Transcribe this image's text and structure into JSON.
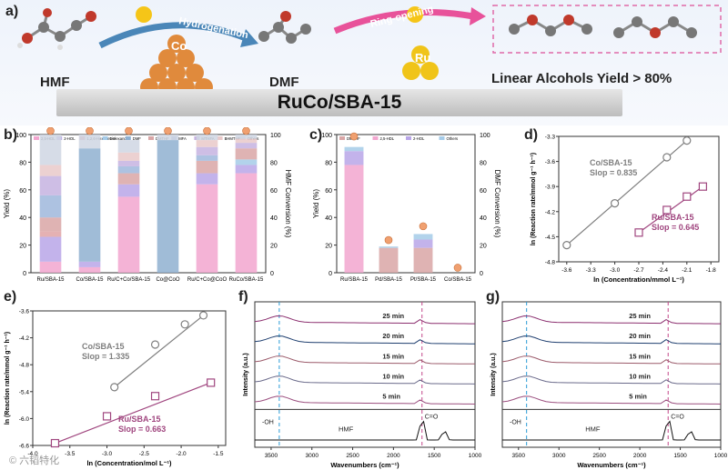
{
  "figure": {
    "panel_labels": [
      "a)",
      "b)",
      "c)",
      "d)",
      "e)",
      "f)",
      "g)"
    ],
    "watermark": "© 六韬特化",
    "scheme": {
      "molecules": [
        "HMF",
        "DMF"
      ],
      "arrow_1": "Hydrogenation",
      "arrow_2": "Ring-opening",
      "metal_1": "Co",
      "metal_2": "Ru",
      "product": "Linear Alcohols Yield > 80%",
      "catalyst": "RuCo/SBA-15"
    }
  },
  "chart_data": [
    {
      "id": "b",
      "type": "bar",
      "stacked": true,
      "ylabel": "Yield (%)",
      "y2label": "HMF Conversion (%)",
      "ylim": [
        0,
        100
      ],
      "yticks": [
        0,
        20,
        40,
        60,
        80,
        100
      ],
      "legend": [
        "2,5-HDL",
        "2-HOL",
        "1,2,6-Hexanetriol",
        "1-Hexanol",
        "DMF",
        "DMTHF",
        "MFA",
        "MTHFA",
        "BHMTHF",
        "Others"
      ],
      "colors": [
        "#f2a6cf",
        "#b9a6e8",
        "#e0a3a6",
        "#a5cbe8",
        "#8fb0d0",
        "#d9a6a6",
        "#9fb7dc",
        "#c6b3e0",
        "#e9c9c9",
        "#cfd6e3"
      ],
      "categories": [
        "Ru/SBA-15",
        "Co/SBA-15",
        "Ru/C+Co/SBA-15",
        "Co@CoO",
        "Ru/C+Co@CoO",
        "RuCo/SBA-15"
      ],
      "series": [
        {
          "name": "2,5-HDL",
          "values": [
            8,
            4,
            55,
            0,
            64,
            72
          ]
        },
        {
          "name": "2-HOL",
          "values": [
            18,
            4,
            9,
            0,
            8,
            6
          ]
        },
        {
          "name": "1,2,6-Hexanetriol",
          "values": [
            4,
            0,
            0,
            0,
            0,
            0
          ]
        },
        {
          "name": "1-Hexanol",
          "values": [
            0,
            0,
            0,
            0,
            0,
            4
          ]
        },
        {
          "name": "DMF",
          "values": [
            0,
            82,
            0,
            96,
            0,
            0
          ]
        },
        {
          "name": "DMTHF",
          "values": [
            10,
            0,
            8,
            0,
            9,
            8
          ]
        },
        {
          "name": "MFA",
          "values": [
            16,
            0,
            5,
            0,
            4,
            0
          ]
        },
        {
          "name": "MTHFA",
          "values": [
            14,
            0,
            4,
            0,
            6,
            4
          ]
        },
        {
          "name": "BHMTHF",
          "values": [
            8,
            0,
            6,
            0,
            5,
            3
          ]
        },
        {
          "name": "Others",
          "values": [
            22,
            10,
            9,
            4,
            4,
            3
          ]
        }
      ],
      "conversion": [
        100,
        100,
        100,
        100,
        100,
        100
      ]
    },
    {
      "id": "c",
      "type": "bar",
      "stacked": true,
      "ylabel": "Yield (%)",
      "y2label": "DMF Conversion (%)",
      "ylim": [
        0,
        100
      ],
      "yticks": [
        0,
        20,
        40,
        60,
        80,
        100
      ],
      "legend": [
        "DMTHF",
        "2,5-HDL",
        "2-HOL",
        "Others"
      ],
      "colors": [
        "#d9a6a6",
        "#f2a6cf",
        "#b9a6e8",
        "#a5cbe8"
      ],
      "categories": [
        "Ru/SBA-15",
        "Pd/SBA-15",
        "Pt/SBA-15",
        "Co/SBA-15"
      ],
      "series": [
        {
          "name": "DMTHF",
          "values": [
            0,
            18,
            18,
            0
          ]
        },
        {
          "name": "2,5-HDL",
          "values": [
            78,
            0,
            0,
            0
          ]
        },
        {
          "name": "2-HOL",
          "values": [
            10,
            0,
            6,
            0
          ]
        },
        {
          "name": "Others",
          "values": [
            3,
            1,
            4,
            0
          ]
        }
      ],
      "conversion": [
        96,
        21,
        31,
        1
      ]
    },
    {
      "id": "d",
      "type": "scatter",
      "xlabel": "ln (Concentration/mmol L⁻¹)",
      "ylabel": "ln (Reaction rate/mmol g⁻¹ h⁻¹)",
      "xlim": [
        -3.7,
        -1.7
      ],
      "ylim": [
        -4.8,
        -3.3
      ],
      "xticks": [
        -3.6,
        -3.3,
        -3.0,
        -2.7,
        -2.4,
        -2.1,
        -1.8
      ],
      "yticks": [
        -4.8,
        -4.5,
        -4.2,
        -3.9,
        -3.6,
        -3.3
      ],
      "series": [
        {
          "name": "Co/SBA-15",
          "label": "Co/SBA-15",
          "slope": "Slop = 0.835",
          "color": "#7f7f7f",
          "marker": "circle",
          "x": [
            -3.6,
            -3.0,
            -2.35,
            -2.1
          ],
          "y": [
            -4.6,
            -4.1,
            -3.55,
            -3.35
          ]
        },
        {
          "name": "Ru/SBA-15",
          "label": "Ru/SBA-15",
          "slope": "Slop = 0.645",
          "color": "#a0467f",
          "marker": "square",
          "x": [
            -2.7,
            -2.35,
            -2.1,
            -1.9
          ],
          "y": [
            -4.45,
            -4.18,
            -4.02,
            -3.9
          ]
        }
      ]
    },
    {
      "id": "e",
      "type": "scatter",
      "xlabel": "ln (Concentration/mol L⁻¹)",
      "ylabel": "ln (Reaction rate/mmol g⁻¹ h⁻¹)",
      "xlim": [
        -4.0,
        -1.4
      ],
      "ylim": [
        -6.6,
        -3.6
      ],
      "xticks": [
        -4.0,
        -3.5,
        -3.0,
        -2.5,
        -2.0,
        -1.5
      ],
      "xtick_labels": [
        "-4.0",
        "-3.5",
        "-3.0",
        "-2.5",
        "-2.0",
        "-1.5"
      ],
      "yticks": [
        -6.6,
        -6.0,
        -5.4,
        -4.8,
        -4.2,
        -3.6
      ],
      "series": [
        {
          "name": "Co/SBA-15",
          "label": "Co/SBA-15",
          "slope": "Slop = 1.335",
          "color": "#7f7f7f",
          "marker": "circle",
          "x": [
            -2.9,
            -2.35,
            -1.95,
            -1.7
          ],
          "y": [
            -5.3,
            -4.35,
            -3.9,
            -3.7
          ]
        },
        {
          "name": "Ru/SBA-15",
          "label": "Ru/SBA-15",
          "slope": "Slop = 0.663",
          "color": "#a0467f",
          "marker": "square",
          "x": [
            -3.7,
            -3.0,
            -2.35,
            -1.6
          ],
          "y": [
            -6.55,
            -5.95,
            -5.5,
            -5.2
          ]
        }
      ]
    },
    {
      "id": "f",
      "type": "line",
      "xlabel": "Wavenumbers (cm⁻¹)",
      "ylabel": "Intensity (a.u.)",
      "xlim": [
        3700,
        1000
      ],
      "xticks": [
        3500,
        3000,
        2500,
        2000,
        1500,
        1000
      ],
      "trace_labels": [
        "25 min",
        "20 min",
        "15 min",
        "10 min",
        "5 min"
      ],
      "trace_colors": [
        "#8b2f6f",
        "#1f3f6f",
        "#9b5a6a",
        "#6a6a8a",
        "#9b4f7f"
      ],
      "reference_label": "HMF",
      "peak_labels": [
        "-OH",
        "C=O"
      ],
      "marker_lines": [
        3400,
        1650
      ]
    },
    {
      "id": "g",
      "type": "line",
      "xlabel": "Wavenumbers (cm⁻¹)",
      "ylabel": "Intensity (a.u.)",
      "xlim": [
        3700,
        1000
      ],
      "xticks": [
        3500,
        3000,
        2500,
        2000,
        1500,
        1000
      ],
      "trace_labels": [
        "25 min",
        "20 min",
        "15 min",
        "10 min",
        "5 min"
      ],
      "trace_colors": [
        "#8b2f6f",
        "#1f3f6f",
        "#9b5a6a",
        "#6a6a8a",
        "#9b4f7f"
      ],
      "reference_label": "HMF",
      "peak_labels": [
        "-OH",
        "C=O"
      ],
      "marker_lines": [
        3400,
        1650
      ]
    }
  ]
}
